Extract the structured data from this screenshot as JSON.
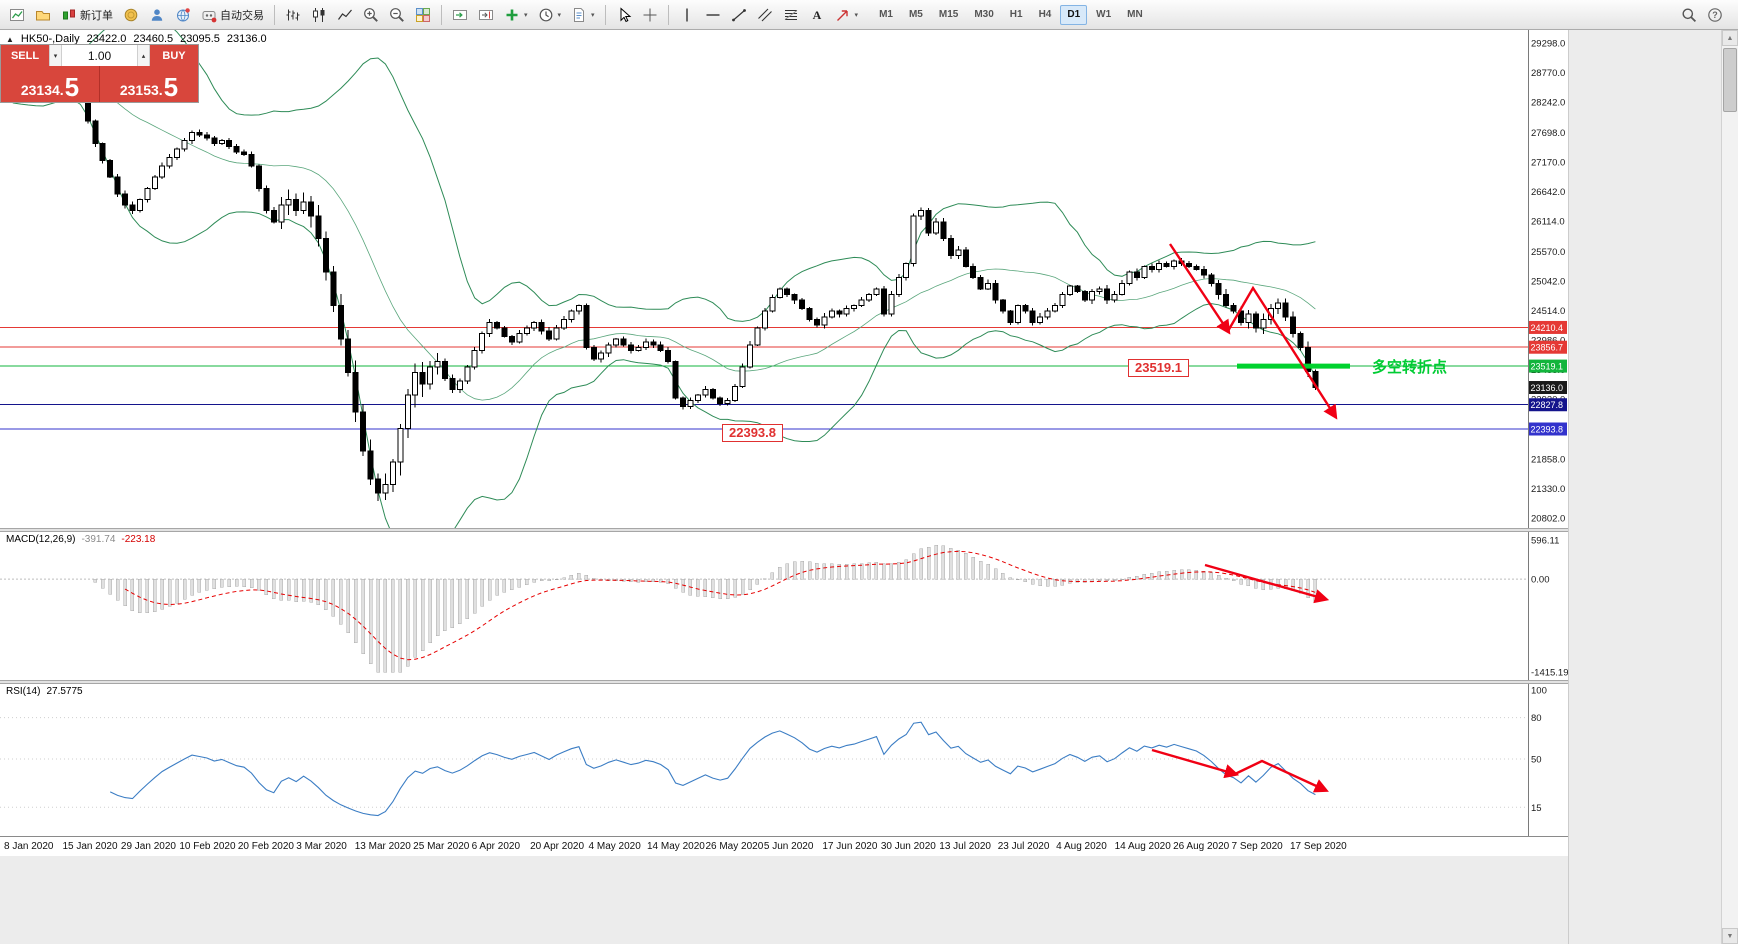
{
  "toolbar": {
    "buttons_left": [
      {
        "name": "new-chart",
        "type": "icon"
      },
      {
        "name": "profiles",
        "type": "icon"
      },
      {
        "name": "new-order",
        "type": "icon-label",
        "label": "新订单"
      },
      {
        "name": "market",
        "type": "icon"
      },
      {
        "name": "signals",
        "type": "icon"
      },
      {
        "name": "community",
        "type": "icon"
      },
      {
        "name": "autotrading",
        "type": "icon-label",
        "label": "自动交易"
      },
      {
        "type": "sep"
      },
      {
        "name": "bar-chart",
        "type": "icon"
      },
      {
        "name": "candlestick-chart",
        "type": "icon"
      },
      {
        "name": "line-chart",
        "type": "icon"
      },
      {
        "name": "zoom-in",
        "type": "icon"
      },
      {
        "name": "zoom-out",
        "type": "icon"
      },
      {
        "name": "tile-windows",
        "type": "icon"
      },
      {
        "type": "sep"
      },
      {
        "name": "auto-scroll",
        "type": "icon"
      },
      {
        "name": "chart-shift",
        "type": "icon"
      },
      {
        "name": "indicators",
        "type": "icon",
        "caret": true
      },
      {
        "name": "periods",
        "type": "icon",
        "caret": true
      },
      {
        "name": "templates",
        "type": "icon",
        "caret": true
      },
      {
        "type": "sep"
      },
      {
        "name": "cursor",
        "type": "icon"
      },
      {
        "name": "crosshair",
        "type": "icon"
      },
      {
        "type": "sep"
      },
      {
        "name": "vertical-line",
        "type": "icon"
      },
      {
        "name": "horizontal-line",
        "type": "icon"
      },
      {
        "name": "trendline",
        "type": "icon"
      },
      {
        "name": "equidistant-channel",
        "type": "icon"
      },
      {
        "name": "fibonacci",
        "type": "icon"
      },
      {
        "name": "text",
        "type": "icon"
      },
      {
        "name": "arrows",
        "type": "icon",
        "caret": true
      }
    ],
    "timeframes": [
      "M1",
      "M5",
      "M15",
      "M30",
      "H1",
      "H4",
      "D1",
      "W1",
      "MN"
    ],
    "active_timeframe": "D1",
    "right_buttons": [
      {
        "name": "search",
        "type": "icon"
      },
      {
        "name": "help",
        "type": "icon"
      }
    ]
  },
  "chart": {
    "symbol_bar": {
      "symbol": "HK50-,Daily",
      "open": "23422.0",
      "high": "23460.5",
      "low": "23095.5",
      "close": "23136.0"
    },
    "one_click": {
      "sell_label": "SELL",
      "buy_label": "BUY",
      "volume": "1.00",
      "sell_price_small": "23134.",
      "sell_price_large": "5",
      "buy_price_small": "23153.",
      "buy_price_large": "5"
    },
    "price_axis": {
      "labels": [
        "29298.0",
        "28770.0",
        "28242.0",
        "27698.0",
        "27170.0",
        "26642.0",
        "26114.0",
        "25570.0",
        "25042.0",
        "24514.0",
        "23986.0",
        "23458.0",
        "22930.0",
        "22402.0",
        "21858.0",
        "21330.0",
        "20802.0"
      ]
    },
    "levels": [
      {
        "value": 24210.4,
        "label": "24210.4",
        "color": "#e53935",
        "line": "solid"
      },
      {
        "value": 23856.7,
        "label": "23856.7",
        "color": "#e53935",
        "line": "solid"
      },
      {
        "value": 23519.1,
        "label": "23519.1",
        "color": "#12b53c",
        "line": "solid"
      },
      {
        "value": 23136.0,
        "label": "23136.0",
        "color": "#1a1a1a",
        "line": "none"
      },
      {
        "value": 22827.8,
        "label": "22827.8",
        "color": "#14148c",
        "line": "solid"
      },
      {
        "value": 22393.8,
        "label": "22393.8",
        "color": "#3333cc",
        "line": "solid"
      }
    ],
    "annotations": {
      "resistance_label": "23519.1",
      "support_label": "22393.8",
      "turning_point_text": "多空转折点",
      "turning_line": {
        "price": 23519.1,
        "x_start": 1237,
        "x_end": 1350,
        "color": "#00d22e"
      }
    },
    "date_axis": [
      "8 Jan 2020",
      "15 Jan 2020",
      "29 Jan 2020",
      "10 Feb 2020",
      "20 Feb 2020",
      "3 Mar 2020",
      "13 Mar 2020",
      "25 Mar 2020",
      "6 Apr 2020",
      "20 Apr 2020",
      "4 May 2020",
      "14 May 2020",
      "26 May 2020",
      "5 Jun 2020",
      "17 Jun 2020",
      "30 Jun 2020",
      "13 Jul 2020",
      "23 Jul 2020",
      "4 Aug 2020",
      "14 Aug 2020",
      "26 Aug 2020",
      "7 Sep 2020",
      "17 Sep 2020"
    ]
  },
  "macd_panel": {
    "name": "MACD(12,26,9)",
    "value_main": "-391.74",
    "value_signal": "-223.18",
    "axis": [
      "596.11",
      "0.00",
      "-1415.19"
    ]
  },
  "rsi_panel": {
    "name": "RSI(14)",
    "value": "27.5775",
    "axis": [
      "100",
      "80",
      "50",
      "15"
    ]
  },
  "chart_data": {
    "type": "candlestick",
    "symbol": "HK50-",
    "period": "Daily",
    "ylim": [
      20802,
      29298
    ],
    "ohlc_current": {
      "open": 23422.0,
      "high": 23460.5,
      "low": 23095.5,
      "close": 23136.0
    },
    "closes": [
      28300,
      28450,
      28600,
      28750,
      28900,
      29020,
      28950,
      28800,
      28850,
      28600,
      28300,
      27900,
      27500,
      27200,
      26900,
      26600,
      26400,
      26300,
      26500,
      26700,
      26900,
      27100,
      27250,
      27400,
      27550,
      27700,
      27650,
      27600,
      27500,
      27550,
      27450,
      27350,
      27300,
      27100,
      26700,
      26300,
      26100,
      26400,
      26500,
      26300,
      26450,
      26200,
      25800,
      25200,
      24600,
      24000,
      23400,
      22700,
      22000,
      21500,
      21250,
      21400,
      21800,
      22400,
      23000,
      23400,
      23200,
      23500,
      23600,
      23300,
      23100,
      23250,
      23500,
      23800,
      24100,
      24300,
      24200,
      24050,
      23950,
      24100,
      24200,
      24300,
      24150,
      24000,
      24200,
      24350,
      24500,
      24600,
      23850,
      23650,
      23750,
      23900,
      24000,
      23900,
      23800,
      23850,
      23950,
      23900,
      23800,
      23600,
      22950,
      22800,
      22900,
      23000,
      23100,
      22950,
      22850,
      22900,
      23150,
      23500,
      23900,
      24200,
      24500,
      24750,
      24900,
      24800,
      24700,
      24550,
      24350,
      24250,
      24400,
      24500,
      24450,
      24550,
      24600,
      24700,
      24800,
      24900,
      24450,
      24800,
      25100,
      25350,
      26200,
      26300,
      25900,
      26100,
      25800,
      25500,
      25600,
      25300,
      25100,
      24900,
      25000,
      24700,
      24500,
      24300,
      24600,
      24500,
      24300,
      24400,
      24500,
      24600,
      24800,
      24950,
      24850,
      24700,
      24850,
      24900,
      24700,
      24800,
      25000,
      25200,
      25100,
      25300,
      25250,
      25350,
      25300,
      25400,
      25350,
      25300,
      25250,
      25150,
      25000,
      24800,
      24600,
      24500,
      24300,
      24450,
      24200,
      24350,
      24550,
      24650,
      24400,
      24100,
      23850,
      23422,
      23136
    ],
    "overlays": {
      "bollinger": {
        "period": 20,
        "deviation": 2
      }
    },
    "lower_indicators": [
      {
        "type": "macd",
        "fast": 12,
        "slow": 26,
        "signal": 9,
        "current_main": -391.74,
        "current_signal": -223.18
      },
      {
        "type": "rsi",
        "period": 14,
        "current": 27.5775
      }
    ]
  }
}
